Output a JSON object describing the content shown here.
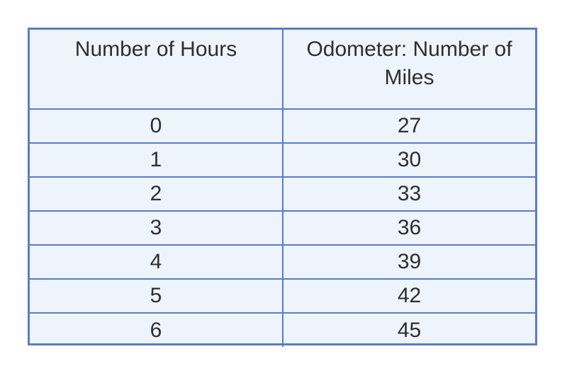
{
  "chart_data": {
    "type": "table",
    "columns": [
      "Number of Hours",
      "Odometer: Number of Miles"
    ],
    "rows": [
      [
        0,
        27
      ],
      [
        1,
        30
      ],
      [
        2,
        33
      ],
      [
        3,
        36
      ],
      [
        4,
        39
      ],
      [
        5,
        42
      ],
      [
        6,
        45
      ]
    ]
  },
  "colors": {
    "border": "#5b7bc6",
    "cell_background": "#eef4fc",
    "text": "#2e2e2e"
  }
}
